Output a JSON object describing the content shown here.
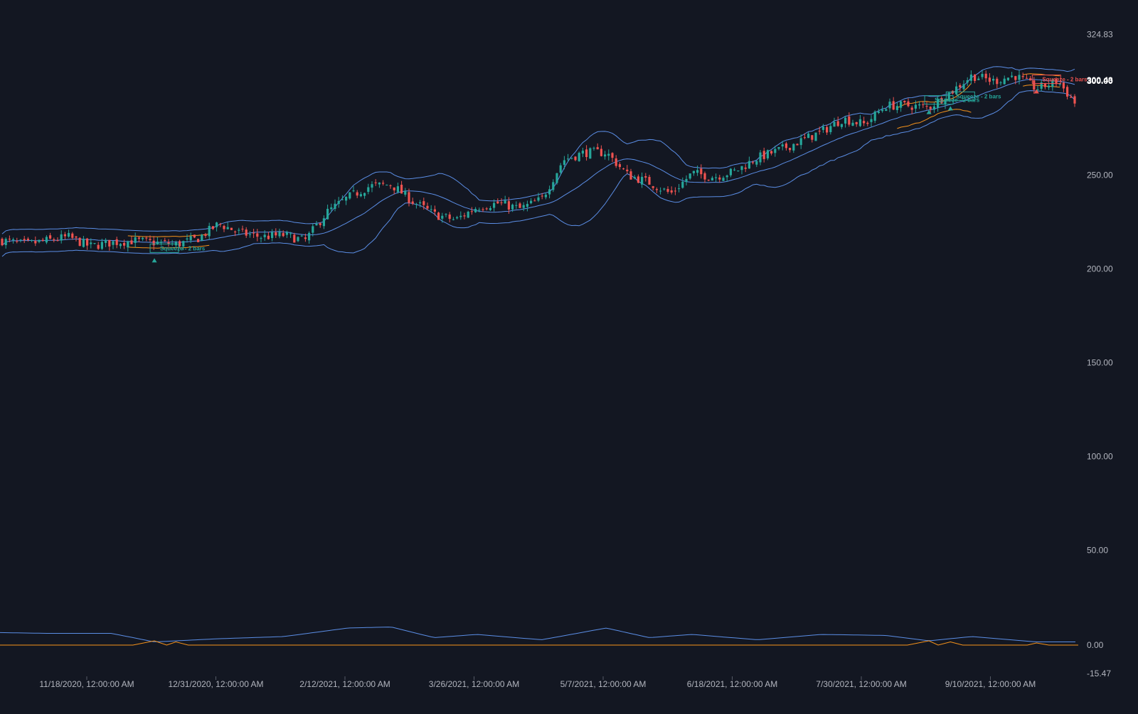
{
  "theme": {
    "background": "#131722",
    "up_color": "#26a69a",
    "down_color": "#ef5350",
    "band_color": "#5b8ee6",
    "keltner_color": "#f7931a",
    "axis_text_color": "#b2b5be",
    "squeeze_label_up_color": "#26a69a",
    "squeeze_label_down_color": "#ef5350"
  },
  "chart_data": {
    "type": "candlestick",
    "grid": false,
    "price_axis": {
      "labels": [
        "324.83",
        "300.00",
        "250.00",
        "200.00",
        "150.00",
        "100.00",
        "50.00",
        "0.00",
        "-15.47"
      ],
      "last_price_labels": [
        "300.43",
        "300.00"
      ],
      "range": [
        -15.47,
        324.83
      ]
    },
    "time_axis": {
      "labels": [
        "11/18/2020, 12:00:00 AM",
        "12/31/2020, 12:00:00 AM",
        "2/12/2021, 12:00:00 AM",
        "3/26/2021, 12:00:00 AM",
        "5/7/2021, 12:00:00 AM",
        "6/18/2021, 12:00:00 AM",
        "7/30/2021, 12:00:00 AM",
        "9/10/2021, 12:00:00 AM"
      ]
    },
    "series": [
      {
        "name": "price",
        "kind": "candlestick"
      },
      {
        "name": "bollinger_upper",
        "kind": "line"
      },
      {
        "name": "bollinger_middle",
        "kind": "line"
      },
      {
        "name": "bollinger_lower",
        "kind": "line"
      },
      {
        "name": "keltner_overlay",
        "kind": "line"
      },
      {
        "name": "bandwidth",
        "kind": "line"
      },
      {
        "name": "squeeze",
        "kind": "line"
      }
    ],
    "close_path": [
      [
        "2020-10-01",
        214
      ],
      [
        "2020-10-08",
        203
      ],
      [
        "2020-10-15",
        216
      ],
      [
        "2020-10-22",
        215
      ],
      [
        "2020-10-29",
        213
      ],
      [
        "2020-11-05",
        215
      ],
      [
        "2020-11-12",
        217
      ],
      [
        "2020-11-19",
        212
      ],
      [
        "2020-11-26",
        214
      ],
      [
        "2020-12-03",
        215
      ],
      [
        "2020-12-10",
        214
      ],
      [
        "2020-12-17",
        213
      ],
      [
        "2020-12-24",
        216
      ],
      [
        "2020-12-31",
        224
      ],
      [
        "2021-01-07",
        219
      ],
      [
        "2021-01-14",
        217
      ],
      [
        "2021-01-21",
        218
      ],
      [
        "2021-01-28",
        215
      ],
      [
        "2021-02-04",
        230
      ],
      [
        "2021-02-11",
        238
      ],
      [
        "2021-02-18",
        244
      ],
      [
        "2021-02-25",
        245
      ],
      [
        "2021-03-04",
        236
      ],
      [
        "2021-03-11",
        229
      ],
      [
        "2021-03-18",
        226
      ],
      [
        "2021-03-25",
        233
      ],
      [
        "2021-04-01",
        235
      ],
      [
        "2021-04-08",
        232
      ],
      [
        "2021-04-15",
        237
      ],
      [
        "2021-04-22",
        258
      ],
      [
        "2021-04-29",
        262
      ],
      [
        "2021-05-06",
        262
      ],
      [
        "2021-05-13",
        250
      ],
      [
        "2021-05-20",
        246
      ],
      [
        "2021-05-27",
        240
      ],
      [
        "2021-06-03",
        251
      ],
      [
        "2021-06-10",
        249
      ],
      [
        "2021-06-17",
        252
      ],
      [
        "2021-06-24",
        259
      ],
      [
        "2021-07-01",
        263
      ],
      [
        "2021-07-08",
        268
      ],
      [
        "2021-07-15",
        273
      ],
      [
        "2021-07-22",
        280
      ],
      [
        "2021-07-29",
        277
      ],
      [
        "2021-08-05",
        287
      ],
      [
        "2021-08-12",
        287
      ],
      [
        "2021-08-19",
        286
      ],
      [
        "2021-08-26",
        294
      ],
      [
        "2021-09-02",
        303
      ],
      [
        "2021-09-09",
        300
      ],
      [
        "2021-09-16",
        303
      ],
      [
        "2021-09-23",
        296
      ],
      [
        "2021-09-30",
        300
      ],
      [
        "2021-10-07",
        285
      ],
      [
        "2021-10-14",
        283
      ],
      [
        "2021-10-21",
        298
      ]
    ],
    "squeeze_annotations": [
      {
        "text": "Squeeze - 2 bars",
        "date": "2020-12-10",
        "price": 211,
        "direction": "up"
      },
      {
        "text": "Squeeze - 2 bars",
        "date": "2021-08-19",
        "price": 290,
        "direction": "up"
      },
      {
        "text": "Squeeze - 2 bars",
        "date": "2021-08-26",
        "price": 292,
        "direction": "up"
      },
      {
        "text": "Squeeze - 2 bars",
        "date": "2021-09-23",
        "price": 301,
        "direction": "down"
      }
    ],
    "bandwidth_path": [
      [
        "2020-10-01",
        10
      ],
      [
        "2020-10-15",
        12
      ],
      [
        "2020-11-05",
        11
      ],
      [
        "2020-11-26",
        11
      ],
      [
        "2020-12-10",
        3
      ],
      [
        "2020-12-31",
        6
      ],
      [
        "2021-01-21",
        8
      ],
      [
        "2021-02-11",
        16
      ],
      [
        "2021-02-25",
        17
      ],
      [
        "2021-03-11",
        7
      ],
      [
        "2021-03-25",
        10
      ],
      [
        "2021-04-15",
        5
      ],
      [
        "2021-05-06",
        16
      ],
      [
        "2021-05-20",
        7
      ],
      [
        "2021-06-03",
        10
      ],
      [
        "2021-06-24",
        5
      ],
      [
        "2021-07-15",
        10
      ],
      [
        "2021-08-05",
        9
      ],
      [
        "2021-08-19",
        4
      ],
      [
        "2021-09-02",
        8
      ],
      [
        "2021-09-23",
        3
      ],
      [
        "2021-10-07",
        3
      ],
      [
        "2021-10-21",
        9
      ]
    ],
    "squeeze_path": [
      [
        "2020-10-01",
        0
      ],
      [
        "2020-12-03",
        0
      ],
      [
        "2020-12-10",
        4
      ],
      [
        "2020-12-14",
        0
      ],
      [
        "2020-12-17",
        3
      ],
      [
        "2020-12-21",
        0
      ],
      [
        "2021-08-12",
        0
      ],
      [
        "2021-08-19",
        4
      ],
      [
        "2021-08-22",
        0
      ],
      [
        "2021-08-26",
        3
      ],
      [
        "2021-08-30",
        0
      ],
      [
        "2021-09-20",
        0
      ],
      [
        "2021-09-23",
        2
      ],
      [
        "2021-09-27",
        0
      ],
      [
        "2021-10-21",
        0
      ]
    ]
  }
}
